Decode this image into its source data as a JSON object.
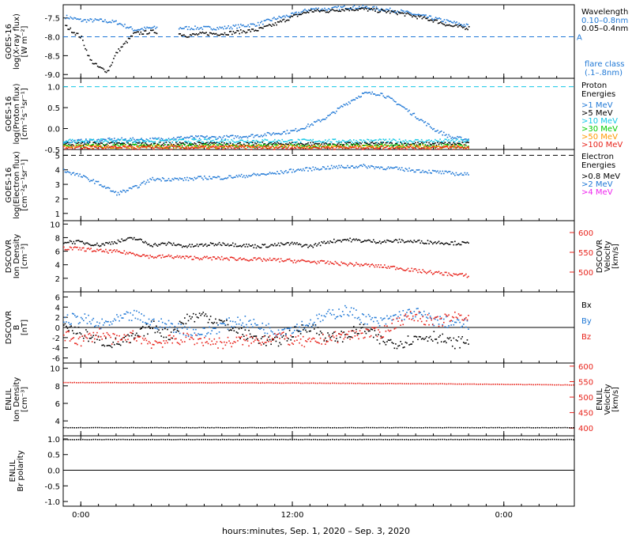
{
  "x_axis": {
    "label": "hours:minutes, Sep.  1, 2020 – Sep.  3, 2020",
    "ticks": [
      "0:00",
      "12:00",
      "0:00"
    ],
    "tick_hours": [
      0,
      12,
      24
    ],
    "range_hours": [
      -1,
      28
    ]
  },
  "colors": {
    "black": "#000000",
    "blue": "#1f78d6",
    "cyan": "#14c8e6",
    "green": "#00cc00",
    "orange": "#ff9900",
    "red": "#e8221a",
    "magenta": "#ee22ee",
    "dark_blue": "#1a1a99"
  },
  "panels": [
    {
      "id": "xray",
      "ylabel_lines": [
        "GOES-16",
        "log(X-ray flux)",
        "[W m⁻²]"
      ],
      "yticks": [
        "-7.5",
        "-8.0",
        "-8.5",
        "-9.0"
      ],
      "ytick_values": [
        -7.5,
        -8.0,
        -8.5,
        -9.0
      ],
      "yrange": [
        -9.1,
        -7.15
      ],
      "legend": {
        "title": "Wavelength",
        "items": [
          {
            "label": "0.10–0.8nm",
            "color": "#1f78d6"
          },
          {
            "label": "0.05–0.4nm",
            "color": "#000000"
          }
        ],
        "extra": [
          "flare class",
          "(.1–.8nm)"
        ]
      },
      "flare_line_label": "A",
      "flare_line_value": -8.0
    },
    {
      "id": "proton",
      "ylabel_lines": [
        "GOES-16",
        "log(Proton flux)",
        "[cm⁻²s⁻¹sr⁻¹]"
      ],
      "yticks": [
        "1.0",
        "0.5",
        "0.0",
        "-0.5"
      ],
      "ytick_values": [
        1.0,
        0.5,
        0.0,
        -0.5
      ],
      "yrange": [
        -0.5,
        1.2
      ],
      "legend": {
        "title": "Proton",
        "title2": "Energies",
        "items": [
          {
            "label": ">1 MeV",
            "color": "#1f78d6"
          },
          {
            "label": ">5 MeV",
            "color": "#000000"
          },
          {
            "label": ">10 MeV",
            "color": "#14c8e6"
          },
          {
            "label": ">30 MeV",
            "color": "#00cc00"
          },
          {
            "label": ">50 MeV",
            "color": "#ff9900"
          },
          {
            "label": ">100 MeV",
            "color": "#e8221a"
          }
        ]
      }
    },
    {
      "id": "electron",
      "ylabel_lines": [
        "GOES-16",
        "log(Electron flux)",
        "[cm⁻²s⁻¹sr⁻¹]"
      ],
      "yticks": [
        "5",
        "4",
        "3",
        "2",
        "1"
      ],
      "ytick_values": [
        5,
        4,
        3,
        2,
        1
      ],
      "yrange": [
        0.5,
        5.4
      ],
      "legend": {
        "title": "Electron",
        "title2": "Energies",
        "items": [
          {
            "label": ">0.8 MeV",
            "color": "#000000"
          },
          {
            "label": ">2 MeV",
            "color": "#1f78d6"
          },
          {
            "label": ">4 MeV",
            "color": "#ee22ee"
          }
        ]
      }
    },
    {
      "id": "dscovr_plasma",
      "ylabel_lines": [
        "DSCOVR",
        "Ion Density",
        "[cm⁻³]"
      ],
      "yticks": [
        "10",
        "8",
        "6",
        "4",
        "2"
      ],
      "ytick_values": [
        10,
        8,
        6,
        4,
        2
      ],
      "yrange": [
        0,
        10.5
      ],
      "right_label_lines": [
        "DSCOVR",
        "Velocity",
        "[km/s]"
      ],
      "right_ticks": [
        "600",
        "550",
        "500"
      ],
      "right_tick_values": [
        600,
        550,
        500
      ],
      "right_range": [
        450,
        630
      ]
    },
    {
      "id": "dscovr_mag",
      "ylabel_lines": [
        "DSCOVR",
        "B",
        "[nT]"
      ],
      "yticks": [
        "6",
        "4",
        "2",
        "0",
        "-2",
        "-4",
        "-6"
      ],
      "ytick_values": [
        6,
        4,
        2,
        0,
        -2,
        -4,
        -6
      ],
      "yrange": [
        -7,
        7
      ],
      "legend": {
        "items": [
          {
            "label": "Bx",
            "color": "#000000"
          },
          {
            "label": "By",
            "color": "#1f78d6"
          },
          {
            "label": "Bz",
            "color": "#e8221a"
          }
        ]
      }
    },
    {
      "id": "enlil_plasma",
      "ylabel_lines": [
        "ENLIL",
        "Ion Density",
        "[cm⁻³]"
      ],
      "yticks": [
        "10",
        "8",
        "6",
        "4"
      ],
      "ytick_values": [
        10,
        8,
        6,
        4
      ],
      "yrange": [
        2.3,
        10.6
      ],
      "right_label_lines": [
        "ENLIL",
        "Velocity",
        "[km/s]"
      ],
      "right_ticks": [
        "600",
        "550",
        "500",
        "450",
        "400"
      ],
      "right_tick_values": [
        600,
        550,
        500,
        450,
        400
      ],
      "right_range": [
        375,
        610
      ]
    },
    {
      "id": "enlil_polarity",
      "ylabel_lines": [
        "ENLIL",
        "Br polarity"
      ],
      "yticks": [
        "1.0",
        "0.5",
        "0.0",
        "-0.5",
        "-1.0"
      ],
      "ytick_values": [
        1.0,
        0.5,
        0.0,
        -0.5,
        -1.0
      ],
      "yrange": [
        -1.15,
        1.1
      ]
    }
  ],
  "chart_data": [
    {
      "type": "scatter",
      "panel": "xray",
      "ylabel": "log(X-ray flux)",
      "ylim": [
        -9.1,
        -7.15
      ],
      "series": [
        {
          "name": "0.10–0.8nm",
          "color": "#1f78d6",
          "x": [
            -0.9,
            0,
            1,
            2,
            3,
            4,
            5,
            6,
            7,
            8,
            9,
            10,
            11,
            12,
            13,
            14,
            15,
            16,
            17,
            18,
            19,
            20,
            21,
            22
          ],
          "y": [
            -7.45,
            -7.55,
            -7.55,
            -7.6,
            -7.8,
            -7.75,
            -7.75,
            -7.75,
            -7.75,
            -7.75,
            -7.7,
            -7.65,
            -7.5,
            -7.4,
            -7.25,
            -7.25,
            -7.2,
            -7.2,
            -7.25,
            -7.3,
            -7.4,
            -7.5,
            -7.6,
            -7.7
          ]
        },
        {
          "name": "0.05–0.4nm",
          "color": "#000000",
          "x": [
            -0.9,
            0,
            0.5,
            1,
            1.5,
            2,
            3,
            4,
            5,
            6,
            7,
            8,
            9,
            10,
            11,
            12,
            13,
            14,
            15,
            16,
            17,
            18,
            19,
            20,
            21,
            22
          ],
          "y": [
            -7.7,
            -8.0,
            -8.6,
            -8.8,
            -8.9,
            -8.4,
            -7.9,
            -7.85,
            -7.85,
            -7.95,
            -7.9,
            -7.9,
            -7.85,
            -7.8,
            -7.65,
            -7.45,
            -7.3,
            -7.3,
            -7.25,
            -7.25,
            -7.3,
            -7.35,
            -7.45,
            -7.55,
            -7.7,
            -7.75
          ]
        }
      ]
    },
    {
      "type": "scatter",
      "panel": "proton",
      "ylabel": "log(Proton flux)",
      "ylim": [
        -0.5,
        1.2
      ],
      "series": [
        {
          "name": ">1 MeV",
          "color": "#1f78d6",
          "x": [
            -1,
            2,
            4,
            6,
            8,
            10,
            12,
            13,
            14,
            15,
            16,
            17,
            18,
            19,
            20,
            21,
            22
          ],
          "y": [
            -0.3,
            -0.25,
            -0.25,
            -0.2,
            -0.2,
            -0.15,
            -0.05,
            0.1,
            0.3,
            0.6,
            0.85,
            0.85,
            0.6,
            0.3,
            0.0,
            -0.2,
            -0.25
          ]
        },
        {
          "name": ">5 MeV",
          "color": "#000000",
          "x": [
            -1,
            22
          ],
          "y": [
            -0.35,
            -0.35
          ]
        },
        {
          "name": ">10 MeV",
          "color": "#14c8e6",
          "x": [
            -1,
            22
          ],
          "y": [
            -0.28,
            -0.28
          ]
        },
        {
          "name": ">30 MeV",
          "color": "#00cc00",
          "x": [
            -1,
            22
          ],
          "y": [
            -0.4,
            -0.4
          ]
        },
        {
          "name": ">50 MeV",
          "color": "#ff9900",
          "x": [
            -1,
            22
          ],
          "y": [
            -0.42,
            -0.42
          ]
        },
        {
          "name": ">100 MeV",
          "color": "#e8221a",
          "x": [
            -1,
            22
          ],
          "y": [
            -0.44,
            -0.44
          ]
        }
      ]
    },
    {
      "type": "line",
      "panel": "electron",
      "ylabel": "log(Electron flux)",
      "ylim": [
        0.5,
        5.4
      ],
      "series": [
        {
          "name": ">2 MeV",
          "color": "#1f78d6",
          "x": [
            -1,
            0,
            1,
            2,
            3,
            4,
            5,
            6,
            7,
            8,
            9,
            10,
            11,
            12,
            13,
            14,
            15,
            16,
            17,
            18,
            19,
            20,
            21,
            22
          ],
          "y": [
            4.0,
            3.6,
            3.1,
            2.4,
            2.8,
            3.4,
            3.4,
            3.4,
            3.5,
            3.5,
            3.6,
            3.7,
            3.8,
            4.0,
            4.1,
            4.2,
            4.25,
            4.3,
            4.2,
            4.1,
            4.0,
            3.9,
            3.8,
            3.7
          ]
        }
      ]
    },
    {
      "type": "scatter",
      "panel": "dscovr_plasma",
      "ylabel": "Ion Density",
      "ylim": [
        0,
        10.5
      ],
      "series": [
        {
          "name": "Ion Density",
          "color": "#000000",
          "x": [
            -1,
            0,
            1,
            2,
            3,
            4,
            5,
            6,
            7,
            8,
            9,
            10,
            11,
            12,
            13,
            14,
            15,
            16,
            17,
            18,
            19,
            20,
            21,
            22
          ],
          "y": [
            7.5,
            7.4,
            7.0,
            7.5,
            8.0,
            7.0,
            7.2,
            6.8,
            7.0,
            7.2,
            7.0,
            6.8,
            7.0,
            7.2,
            6.8,
            7.5,
            7.8,
            7.6,
            7.5,
            7.6,
            7.5,
            7.4,
            7.3,
            7.2
          ]
        },
        {
          "name": "Velocity",
          "color": "#e8221a",
          "x": [
            -1,
            0,
            1,
            2,
            3,
            4,
            5,
            6,
            7,
            8,
            9,
            10,
            11,
            12,
            13,
            14,
            15,
            16,
            17,
            18,
            19,
            20,
            21,
            22
          ],
          "y": [
            562,
            560,
            555,
            553,
            548,
            540,
            541,
            538,
            537,
            536,
            535,
            533,
            532,
            530,
            528,
            525,
            522,
            520,
            516,
            512,
            505,
            500,
            496,
            492
          ]
        }
      ]
    },
    {
      "type": "scatter",
      "panel": "dscovr_mag",
      "ylabel": "B [nT]",
      "ylim": [
        -7,
        7
      ],
      "series": [
        {
          "name": "Bx",
          "color": "#000000",
          "x": [
            -1,
            0,
            1,
            2,
            3,
            4,
            5,
            6,
            7,
            8,
            9,
            10,
            11,
            12,
            13,
            14,
            15,
            16,
            17,
            18,
            19,
            20,
            21,
            22
          ],
          "y": [
            0.5,
            -1.0,
            -2.5,
            -3.0,
            -2.0,
            0.5,
            -1.5,
            2.0,
            2.5,
            1.0,
            -1.0,
            -2.0,
            -3.0,
            -1.0,
            0.5,
            -2.0,
            -1.5,
            0.0,
            -2.5,
            -3.0,
            -2.0,
            -1.5,
            -3.0,
            -2.5
          ]
        },
        {
          "name": "By",
          "color": "#1f78d6",
          "x": [
            -1,
            0,
            1,
            2,
            3,
            4,
            5,
            6,
            7,
            8,
            9,
            10,
            11,
            12,
            13,
            14,
            15,
            16,
            17,
            18,
            19,
            20,
            21,
            22
          ],
          "y": [
            1.5,
            2.0,
            0.5,
            1.5,
            2.5,
            1.0,
            0.5,
            -0.5,
            -1.0,
            0.5,
            1.5,
            0.5,
            -0.5,
            0.0,
            1.0,
            2.5,
            3.5,
            2.0,
            1.0,
            2.5,
            3.0,
            1.5,
            1.0,
            0.5
          ]
        },
        {
          "name": "Bz",
          "color": "#e8221a",
          "x": [
            -1,
            0,
            1,
            2,
            3,
            4,
            5,
            6,
            7,
            8,
            9,
            10,
            11,
            12,
            13,
            14,
            15,
            16,
            17,
            18,
            19,
            20,
            21,
            22
          ],
          "y": [
            -1.5,
            -2.5,
            -1.0,
            -2.5,
            -1.5,
            -3.0,
            -2.5,
            -2.0,
            -2.5,
            -3.0,
            -2.5,
            -2.5,
            -1.5,
            -2.5,
            -3.0,
            -2.0,
            -1.5,
            -1.0,
            -1.0,
            1.5,
            2.5,
            1.0,
            2.0,
            2.5
          ]
        }
      ]
    },
    {
      "type": "scatter",
      "panel": "enlil_plasma",
      "ylabel": "Ion Density",
      "ylim": [
        2.3,
        10.6
      ],
      "series": [
        {
          "name": "Ion Density",
          "color": "#000000",
          "x": [
            -1,
            28
          ],
          "y": [
            3.3,
            3.3
          ]
        },
        {
          "name": "Velocity",
          "color": "#e8221a",
          "x": [
            -1,
            10,
            20,
            28
          ],
          "y": [
            549,
            548,
            545,
            541
          ]
        }
      ]
    },
    {
      "type": "scatter",
      "panel": "enlil_polarity",
      "ylabel": "Br polarity",
      "ylim": [
        -1.15,
        1.1
      ],
      "series": [
        {
          "name": "Br polarity",
          "color": "#000000",
          "x": [
            -1,
            28
          ],
          "y": [
            1.0,
            1.0
          ]
        }
      ]
    }
  ]
}
